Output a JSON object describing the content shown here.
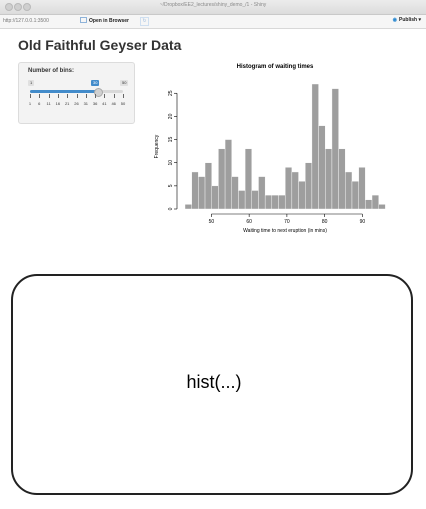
{
  "window": {
    "title": "~/Dropbox/EE2_lectures/shiny_demo_/1 - Shiny"
  },
  "toolbar": {
    "url": "http://127.0.0.1:3500",
    "open_label": "Open in Browser",
    "publish_label": "Publish",
    "refresh_icon": "refresh-icon",
    "publish_icon": "publish-icon"
  },
  "app": {
    "title": "Old Faithful Geyser Data",
    "slider": {
      "label": "Number of bins:",
      "min": "1",
      "max": "50",
      "value": "30",
      "value_fraction": 0.59,
      "tick_labels": [
        "1",
        "6",
        "11",
        "16",
        "21",
        "26",
        "31",
        "36",
        "41",
        "46",
        "50"
      ]
    }
  },
  "chart_data": {
    "type": "bar",
    "title": "Histogram of waiting times",
    "xlabel": "Waiting time to next eruption (in mins)",
    "ylabel": "Frequency",
    "xlim": [
      43,
      96
    ],
    "ylim": [
      0,
      27
    ],
    "x_ticks": [
      50,
      60,
      70,
      80,
      90
    ],
    "y_ticks": [
      0,
      5,
      10,
      15,
      20,
      25
    ],
    "bin_start": 43,
    "bin_width": 1.77,
    "values": [
      1,
      8,
      7,
      10,
      5,
      13,
      15,
      7,
      4,
      13,
      4,
      7,
      3,
      3,
      3,
      9,
      8,
      6,
      10,
      27,
      18,
      13,
      26,
      13,
      8,
      6,
      9,
      2,
      3,
      1
    ],
    "bar_color": "#9e9e9e"
  },
  "card": {
    "text": "hist(...)"
  }
}
